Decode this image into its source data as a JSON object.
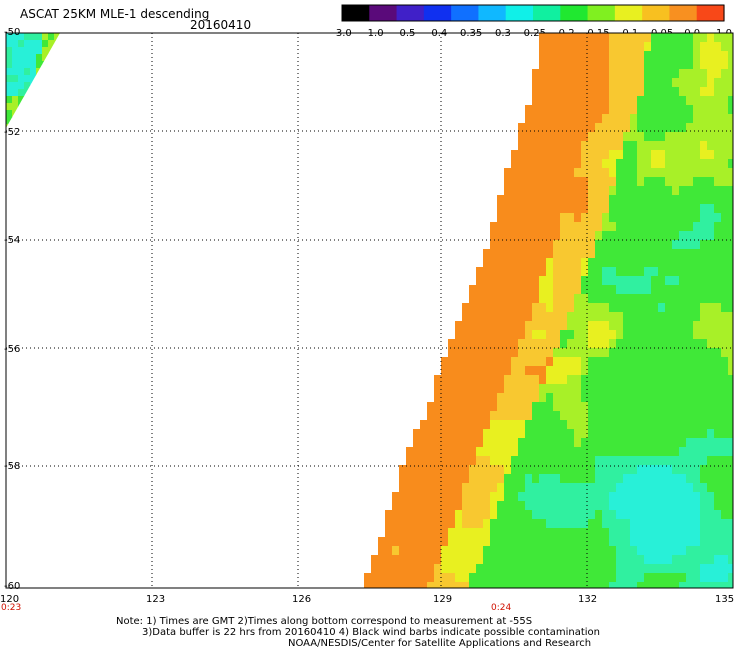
{
  "title": "ASCAT 25KM MLE-1 descending",
  "date": "20160410",
  "colorbar": {
    "tick_labels": [
      "-3.0",
      "-1.0",
      "-0.5",
      "-0.4",
      "-0.35",
      "-0.3",
      "-0.25",
      "-0.2",
      "-0.15",
      "-0.1",
      "-0.05",
      "0.0",
      "1.0"
    ],
    "colors": [
      "#000000",
      "#5a0a7a",
      "#4020c8",
      "#1030f0",
      "#1070ff",
      "#10b8ff",
      "#10f0e8",
      "#10f0a0",
      "#20e830",
      "#80f020",
      "#e8f020",
      "#f8c020",
      "#f89020",
      "#f84818"
    ]
  },
  "map": {
    "lat_labels": [
      "-50",
      "-52",
      "-54",
      "-56",
      "-58",
      "-60"
    ],
    "lon_labels": [
      "120",
      "123",
      "126",
      "129",
      "132",
      "135"
    ],
    "time_labels": [
      "0:23",
      "0:24"
    ],
    "lat_range": [
      -60,
      -50
    ],
    "lon_range": [
      120,
      135
    ],
    "field_colors": {
      "orange": "#f88c1c",
      "yellow_orange": "#f8c830",
      "yellow": "#e8f020",
      "yellow_green": "#a8f028",
      "green": "#40e838",
      "cyan_green": "#30f0a0",
      "cyan": "#28f0d8"
    }
  },
  "notes": [
    "Note: 1) Times are GMT 2)Times along bottom correspond to measurement at -55S",
    "3)Data buffer is 22 hrs from 20160410 4) Black wind barbs indicate possible contamination",
    "NOAA/NESDIS/Center for Satellite Applications and Research"
  ]
}
